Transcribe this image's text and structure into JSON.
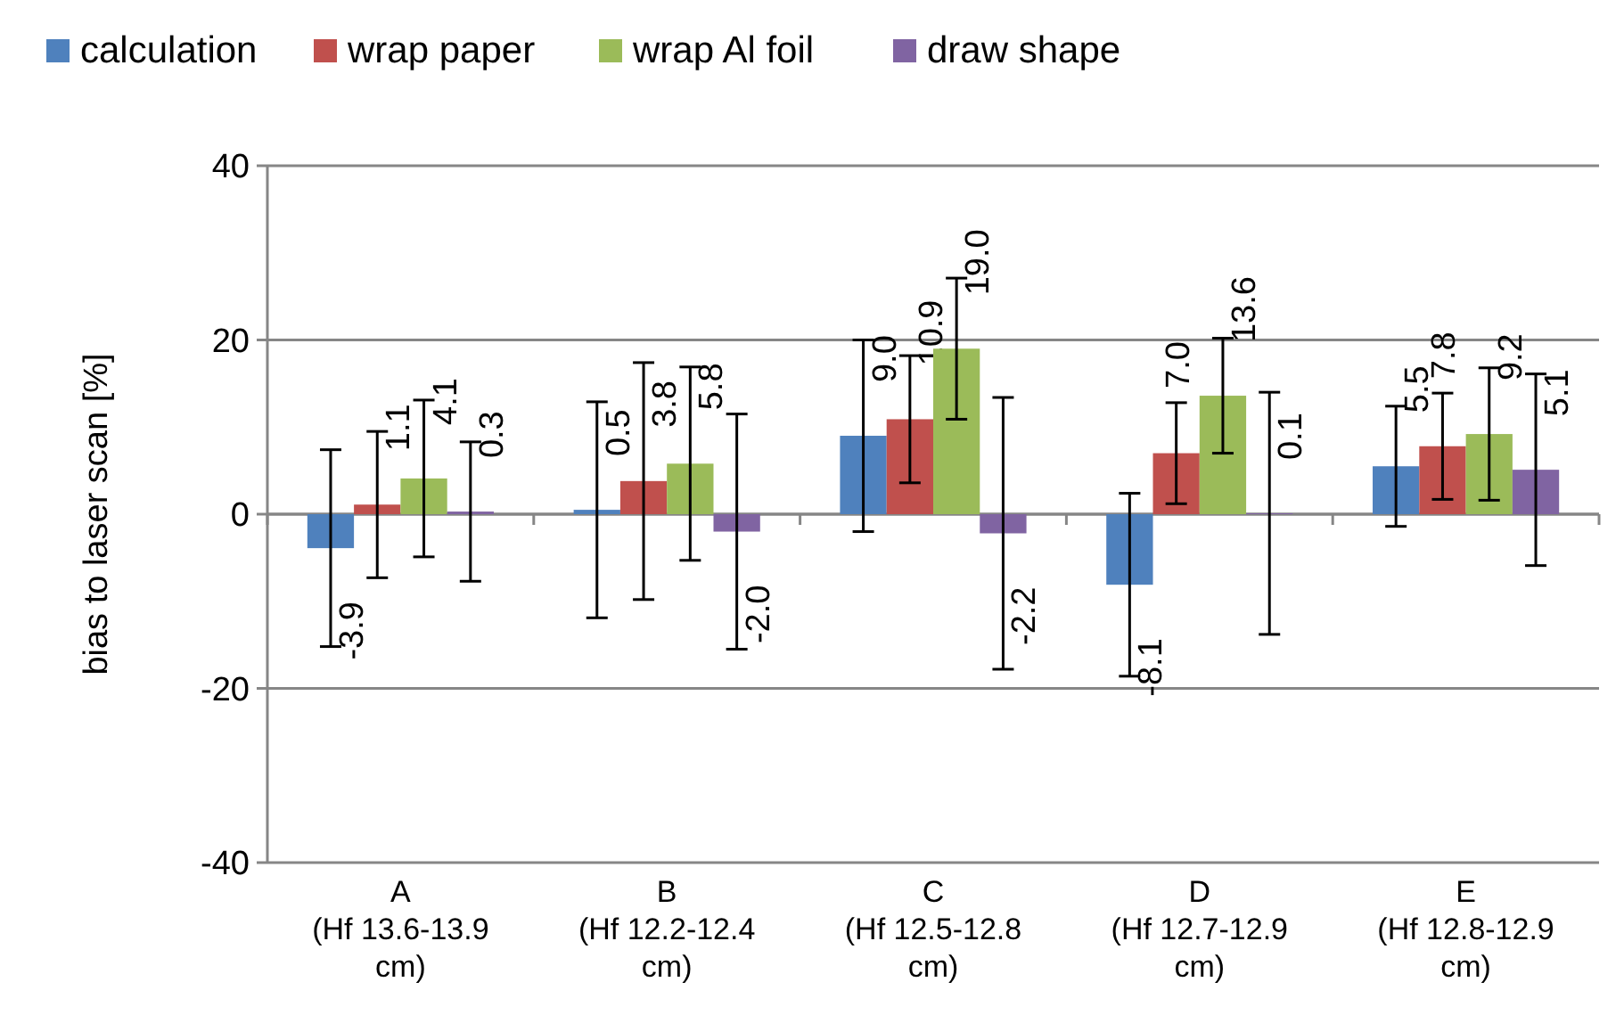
{
  "chart_data": {
    "type": "bar",
    "ylabel": "bias  to laser scan [%]",
    "categories": [
      "A (Hf 13.6-13.9 cm)",
      "B (Hf 12.2-12.4 cm)",
      "C (Hf 12.5-12.8 cm)",
      "D (Hf 12.7-12.9 cm)",
      "E (Hf 12.8-12.9 cm)"
    ],
    "series": [
      {
        "name": "calculation",
        "color": "#4f81bd",
        "values": [
          -3.9,
          0.5,
          9.0,
          -8.1,
          5.5
        ],
        "value_labels": [
          "-3.9",
          "0.5",
          "9.0",
          "-8.1",
          "5.5"
        ],
        "errors": [
          11.3,
          12.4,
          11.0,
          10.5,
          6.9
        ]
      },
      {
        "name": "wrap paper",
        "color": "#c0504d",
        "values": [
          1.1,
          3.8,
          10.9,
          7.0,
          7.8
        ],
        "value_labels": [
          "1.1",
          "3.8",
          "10.9",
          "7.0",
          "7.8"
        ],
        "errors": [
          8.4,
          13.6,
          7.3,
          5.8,
          6.1
        ]
      },
      {
        "name": "wrap Al foil",
        "color": "#9bbb59",
        "values": [
          4.1,
          5.8,
          19.0,
          13.6,
          9.2
        ],
        "value_labels": [
          "4.1",
          "5.8",
          "19.0",
          "13.6",
          "9.2"
        ],
        "errors": [
          9.0,
          11.1,
          8.1,
          6.6,
          7.6
        ]
      },
      {
        "name": "draw shape",
        "color": "#8064a2",
        "values": [
          0.3,
          -2.0,
          -2.2,
          0.1,
          5.1
        ],
        "value_labels": [
          "0.3",
          "-2.0",
          "-2.2",
          "0.1",
          "5.1"
        ],
        "errors": [
          8.0,
          13.5,
          15.6,
          13.9,
          11.0
        ]
      }
    ],
    "ylim": [
      -40,
      40
    ],
    "yticks": [
      -40,
      -20,
      0,
      20,
      40
    ],
    "grid": "y",
    "legend": "top"
  }
}
